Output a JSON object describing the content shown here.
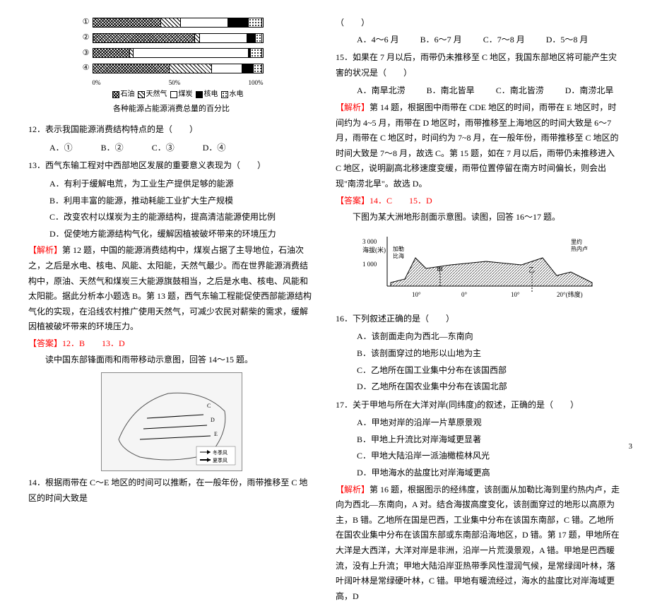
{
  "bar_chart": {
    "rows": [
      "①",
      "②",
      "③",
      "④"
    ],
    "axis": [
      "0%",
      "50%",
      "100%"
    ],
    "legend": [
      {
        "label": "石油",
        "pattern": "cross"
      },
      {
        "label": "天然气",
        "pattern": "diag"
      },
      {
        "label": "煤炭",
        "pattern": "blank"
      },
      {
        "label": "核电",
        "pattern": "solid"
      },
      {
        "label": "水电",
        "pattern": "dots"
      }
    ],
    "caption": "各种能源占能源消费总量的百分比",
    "segments": [
      [
        {
          "w": 40,
          "p": "cross"
        },
        {
          "w": 12,
          "p": "diag"
        },
        {
          "w": 28,
          "p": "blank"
        },
        {
          "w": 12,
          "p": "solid"
        },
        {
          "w": 8,
          "p": "dots"
        }
      ],
      [
        {
          "w": 60,
          "p": "cross"
        },
        {
          "w": 3,
          "p": "diag"
        },
        {
          "w": 28,
          "p": "blank"
        },
        {
          "w": 5,
          "p": "solid"
        },
        {
          "w": 4,
          "p": "dots"
        }
      ],
      [
        {
          "w": 22,
          "p": "cross"
        },
        {
          "w": 2,
          "p": "diag"
        },
        {
          "w": 68,
          "p": "blank"
        },
        {
          "w": 1,
          "p": "solid"
        },
        {
          "w": 7,
          "p": "dots"
        }
      ],
      [
        {
          "w": 45,
          "p": "cross"
        },
        {
          "w": 25,
          "p": "diag"
        },
        {
          "w": 18,
          "p": "blank"
        },
        {
          "w": 7,
          "p": "solid"
        },
        {
          "w": 5,
          "p": "dots"
        }
      ]
    ]
  },
  "q12": {
    "stem": "12．表示我国能源消费结构特点的是（　　）",
    "opts": [
      "A．①",
      "B．②",
      "C．③",
      "D．④"
    ]
  },
  "q13": {
    "stem": "13．西气东输工程对中西部地区发展的重要意义表现为（　　）",
    "opts": [
      "A．有利于缓解电荒，为工业生产提供足够的能源",
      "B．利用丰富的能源，推动耗能工业扩大生产规模",
      "C．改变农村以煤炭为主的能源结构，提高清洁能源使用比例",
      "D．促使地方能源结构气化，缓解因植被破坏带来的环境压力"
    ]
  },
  "analysis12": "【解析】第 12 题，中国的能源消费结构中，煤炭占据了主导地位，石油次之，之后是水电、核电、风能、太阳能，天然气最少。而在世界能源消费结构中，原油、天然气和煤炭三大能源旗鼓相当，之后是水电、核电、风能和太阳能。据此分析本小题选 B。第 13 题，西气东输工程能促使西部能源结构气化的实现，在沿线农村推广使用天然气，可减少农民对薪柴的需求，缓解因植被破坏带来的环境压力。",
  "ans12": "【答案】12．B　　13．D",
  "trans14": "读中国东部锋面雨和雨带移动示意图，回答 14～15 题。",
  "map_legend": [
    "冬季风",
    "夏季风"
  ],
  "q14": {
    "stem": "14．根据雨带在 C～E 地区的时间可以推断，在一般年份，雨带推移至 C 地区的时间大致是"
  },
  "q14b": {
    "opts": [
      "A．4～6 月",
      "B．6～7 月",
      "C．7～8 月",
      "D．5～8 月"
    ],
    "paren": "（　　）"
  },
  "q15": {
    "stem": "15．如果在 7 月以后，雨带仍未推移至 C 地区，我国东部地区将可能产生灾害的状况是（　　）",
    "opts": [
      "A．南旱北涝",
      "B．南北皆旱",
      "C．南北皆涝",
      "D．南涝北旱"
    ]
  },
  "analysis14": "【解析】第 14 题，根据图中雨带在 CDE 地区的时间，雨带在 E 地区时，时间约为 4~5 月，雨带在 D 地区时，雨带推移至上海地区的时间大致是 6～7 月，雨带在 C 地区时，时间约为 7~8 月，在一般年份，雨带推移至 C 地区的时间大致是 7～8 月，故选 C。第 15 题，如在 7 月以后，雨带仍未推移进入 C 地区，说明副高北移速度变缓，雨带位置停留在南方时间偏长，则会出现\"南涝北旱\"。故选 D。",
  "ans14": "【答案】14．C　　15．D",
  "trans16": "下图为某大洲地形剖面示意图。读图，回答 16～17 题。",
  "profile": {
    "ylabel": "3 000\n海拔(米)\n1 000",
    "left_label": "加勒比海",
    "right_label": "里约热内卢",
    "xticks": [
      "10°",
      "0°",
      "10°",
      "20°(纬度)"
    ],
    "regions": [
      "甲",
      "乙"
    ]
  },
  "q16": {
    "stem": "16．下列叙述正确的是（　　）",
    "opts": [
      "A．该剖面走向为西北—东南向",
      "B．该剖面穿过的地形以山地为主",
      "C．乙地所在国工业集中分布在该国西部",
      "D．乙地所在国农业集中分布在该国北部"
    ]
  },
  "q17": {
    "stem": "17．关于甲地与所在大洋对岸(同纬度)的叙述，正确的是（　　）",
    "opts": [
      "A．甲地对岸的沿岸一片草原景观",
      "B．甲地上升流比对岸海域更显著",
      "C．甲地大陆沿岸一派油橄榄林风光",
      "D．甲地海水的盐度比对岸海域更高"
    ]
  },
  "analysis16": "【解析】第 16 题，根据图示的经纬度，该剖面从加勒比海到里约热内卢，走向为西北—东南向，A 对。结合海拔高度变化，该剖面穿过的地形以高原为主，B 错。乙地所在国是巴西，工业集中分布在该国东南部，C 错。乙地所在国农业集中分布在该国东部或东南部沿海地区，D 错。第 17 题，甲地所在大洋是大西洋，大洋对岸是非洲，沿岸一片荒漠景观，A 错。甲地是巴西暖流，没有上升流；甲地大陆沿岸亚热带季风性湿润气候，是常绿阔叶林，落叶阔叶林是常绿硬叶林，C 错。甲地有暖流经过，海水的盐度比对岸海域更高，D",
  "page": "3"
}
